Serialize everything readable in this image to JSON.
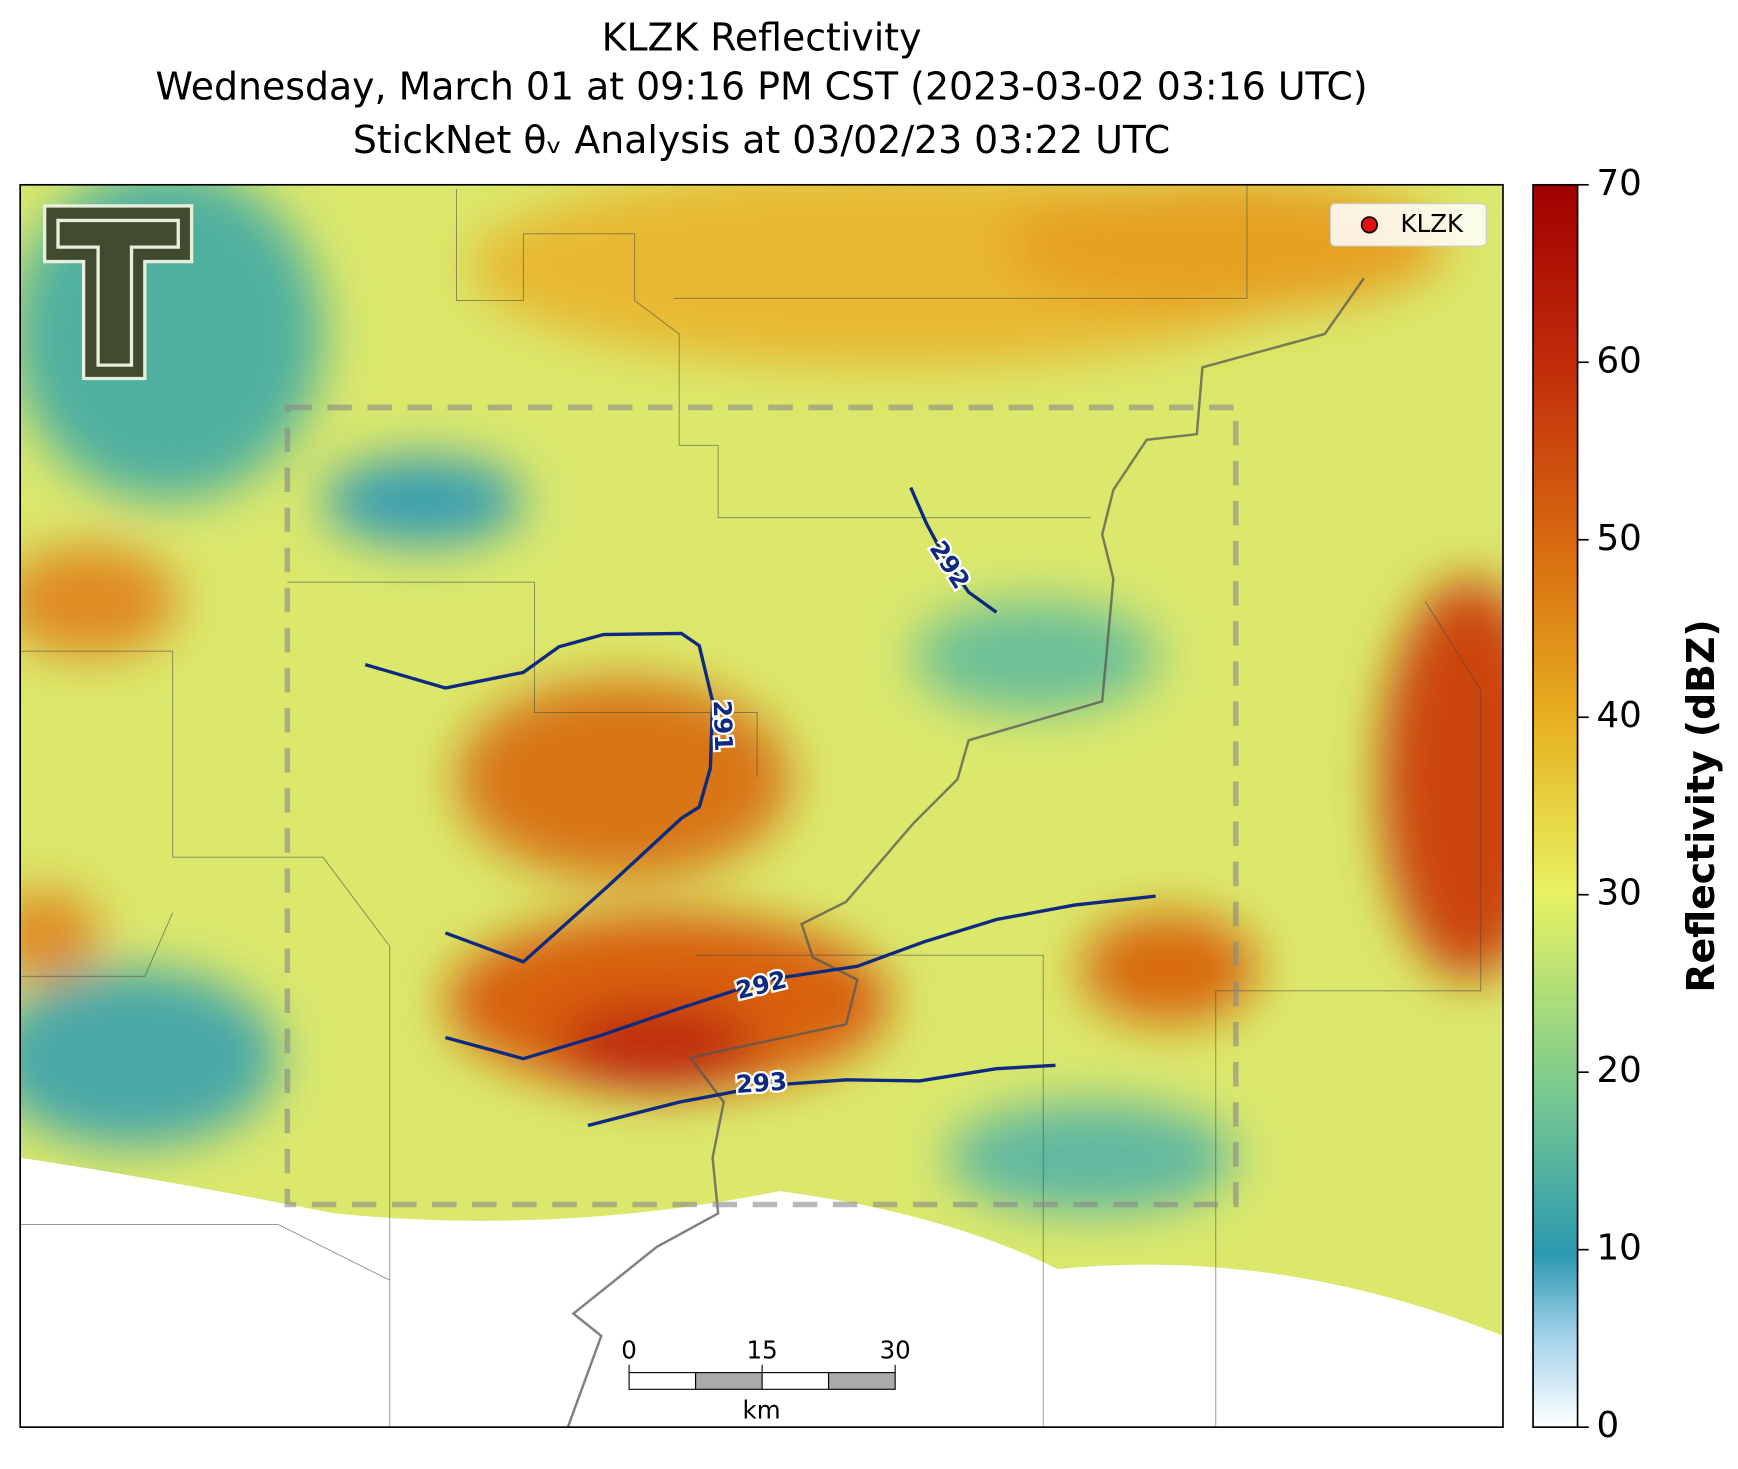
{
  "title": [
    "KLZK Reflectivity",
    "Wednesday, March 01 at 09:16 PM CST (2023-03-02 03:16 UTC)",
    "StickNet θᵥ Analysis at 03/02/23 03:22 UTC"
  ],
  "legend": {
    "label": "KLZK"
  },
  "colorbar": {
    "label": "Reflectivity (dBZ)",
    "lim": [
      0,
      70
    ],
    "ticks": [
      0,
      10,
      20,
      30,
      40,
      50,
      60,
      70
    ]
  },
  "contours": [
    {
      "value": 292
    },
    {
      "value": 291
    },
    {
      "value": 292
    },
    {
      "value": 293
    }
  ],
  "scale_bar": {
    "ticks": [
      0,
      15,
      30
    ],
    "unit": "km"
  }
}
